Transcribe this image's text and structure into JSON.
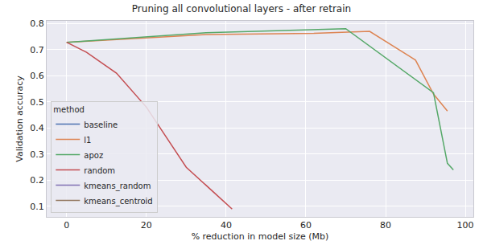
{
  "chart_data": {
    "type": "line",
    "title": "Pruning all convolutional layers - after retrain",
    "x_label": "% reduction in model size (Mb)",
    "y_label": "Validation accuracy",
    "legend_title": "method",
    "legend": "lower left",
    "grid": true,
    "xlim": [
      -5,
      102
    ],
    "xticks": [
      0,
      20,
      40,
      60,
      80,
      100
    ],
    "ylim": [
      0.06,
      0.81
    ],
    "yticks": [
      0.1,
      0.2,
      0.3,
      0.4,
      0.5,
      0.6,
      0.7,
      0.8
    ],
    "series": [
      {
        "name": "baseline",
        "color": "#4c72b0",
        "x": [
          0
        ],
        "values": [
          0.728
        ]
      },
      {
        "name": "l1",
        "color": "#dd8452",
        "x": [
          0,
          20,
          35,
          62,
          76,
          87.5,
          92,
          95.5
        ],
        "values": [
          0.728,
          0.745,
          0.758,
          0.762,
          0.77,
          0.66,
          0.53,
          0.465
        ]
      },
      {
        "name": "apoz",
        "color": "#55a868",
        "x": [
          0,
          20,
          35,
          70,
          92,
          95.5,
          97
        ],
        "values": [
          0.728,
          0.75,
          0.765,
          0.78,
          0.535,
          0.265,
          0.24
        ]
      },
      {
        "name": "random",
        "color": "#c44e52",
        "x": [
          0,
          5,
          12.5,
          20,
          30,
          41.5
        ],
        "values": [
          0.728,
          0.69,
          0.61,
          0.48,
          0.25,
          0.09
        ]
      },
      {
        "name": "kmeans_random",
        "color": "#8172b3",
        "x": [
          0
        ],
        "values": [
          0.728
        ]
      },
      {
        "name": "kmeans_centroid",
        "color": "#937860",
        "x": [
          0
        ],
        "values": [
          0.728
        ]
      }
    ]
  }
}
